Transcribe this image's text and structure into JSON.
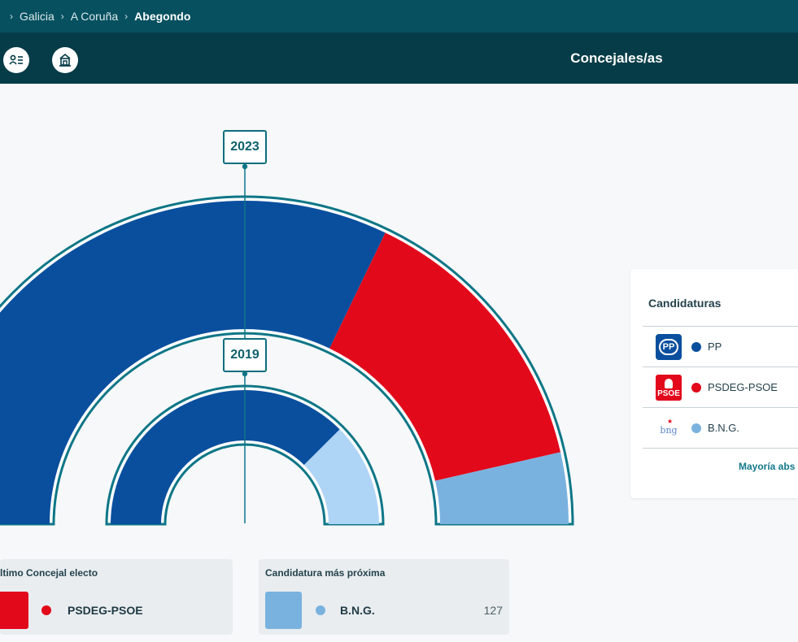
{
  "breadcrumb": {
    "items": [
      "Galicia",
      "A Coruña"
    ],
    "current": "Abegondo"
  },
  "subheader": {
    "title": "Concejales/as",
    "icons": [
      "user-list-icon",
      "town-hall-icon"
    ]
  },
  "colors": {
    "PP": "#0a4f9e",
    "PSDEG-PSOE": "#e2091b",
    "B.N.G.": "#7ab2df",
    "B.N.G. 2019": "#aed4f6",
    "outline": "#0d7686"
  },
  "chart_data": {
    "type": "pie",
    "style": "hemicycle",
    "title": "",
    "outer": {
      "year": "2023",
      "series": [
        {
          "name": "PP",
          "value": 9
        },
        {
          "name": "PSDEG-PSOE",
          "value": 4
        },
        {
          "name": "B.N.G.",
          "value": 1
        }
      ]
    },
    "inner": {
      "year": "2019",
      "series": [
        {
          "name": "PP",
          "value": 9
        },
        {
          "name": "B.N.G.",
          "value": 3
        }
      ]
    }
  },
  "legend": {
    "title": "Candidaturas",
    "items": [
      {
        "name": "PP",
        "logo": "PP"
      },
      {
        "name": "PSDEG-PSOE",
        "logo": "PSOE"
      },
      {
        "name": "B.N.G.",
        "logo": "bng"
      }
    ],
    "footer": "Mayoría abs"
  },
  "last_elected": {
    "title": "ltimo Concejal electo",
    "party": "PSDEG-PSOE"
  },
  "nearest": {
    "title": "Candidatura más próxima",
    "party": "B.N.G.",
    "value": "127"
  }
}
